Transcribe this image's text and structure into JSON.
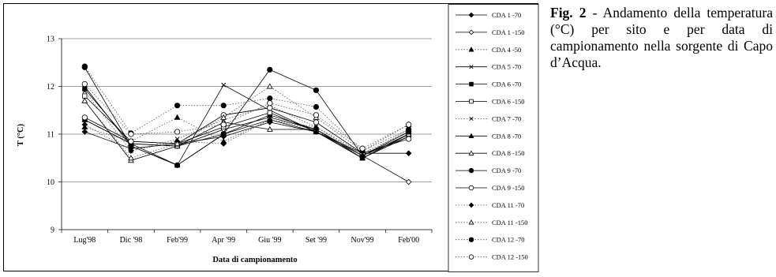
{
  "caption": {
    "label": "Fig. 2",
    "text": " - Andamento della temperatura (°C) per sito e per data di campionamento nella sorgente di Capo d’Acqua."
  },
  "chart_data": {
    "type": "line",
    "title": "",
    "xlabel": "Data di campionamento",
    "ylabel": "T (°C)",
    "ylim": [
      9,
      13
    ],
    "yticks": [
      9,
      10,
      11,
      12,
      13
    ],
    "grid": "horizontal",
    "legend_position": "right",
    "categories": [
      "Lug'98",
      "Dic '98",
      "Feb'99",
      "Apr '99",
      "Giu '99",
      "Set '99",
      "Nov'99",
      "Feb'00"
    ],
    "series": [
      {
        "name": "CDA 1 -70",
        "marker": "diamond-filled",
        "dash": "solid",
        "values": [
          11.05,
          10.7,
          10.8,
          10.95,
          11.25,
          11.05,
          10.6,
          10.6
        ]
      },
      {
        "name": "CDA 1 -150",
        "marker": "diamond-open",
        "dash": "solid",
        "values": [
          11.3,
          10.8,
          10.75,
          11.1,
          11.35,
          11.1,
          10.55,
          10.0
        ]
      },
      {
        "name": "CDA 4 -50",
        "marker": "triangle-filled",
        "dash": "dotted",
        "values": [
          11.15,
          10.85,
          11.35,
          10.85,
          11.3,
          11.15,
          10.55,
          11.05
        ]
      },
      {
        "name": "CDA 5 -70",
        "marker": "x",
        "dash": "solid",
        "values": [
          12.0,
          10.75,
          10.35,
          12.03,
          11.5,
          11.05,
          10.55,
          10.95
        ]
      },
      {
        "name": "CDA 6 -70",
        "marker": "square-filled",
        "dash": "solid",
        "values": [
          11.95,
          10.8,
          10.75,
          11.0,
          11.4,
          11.1,
          10.5,
          11.0
        ]
      },
      {
        "name": "CDA 6 -150",
        "marker": "square-open",
        "dash": "solid",
        "values": [
          11.8,
          10.85,
          10.8,
          11.15,
          11.45,
          11.05,
          10.5,
          10.95
        ]
      },
      {
        "name": "CDA 7 -70",
        "marker": "x",
        "dash": "dotted",
        "values": [
          11.9,
          10.65,
          10.9,
          11.3,
          11.6,
          11.15,
          10.6,
          11.05
        ]
      },
      {
        "name": "CDA 8 -70",
        "marker": "triangle-filled",
        "dash": "solid",
        "values": [
          11.3,
          10.8,
          10.35,
          11.0,
          11.3,
          11.05,
          10.5,
          11.0
        ]
      },
      {
        "name": "CDA 8 -150",
        "marker": "triangle-open",
        "dash": "solid",
        "values": [
          11.7,
          10.45,
          10.75,
          11.25,
          11.1,
          11.1,
          10.55,
          11.0
        ]
      },
      {
        "name": "CDA 9 -70",
        "marker": "circle-filled",
        "dash": "solid",
        "values": [
          12.4,
          10.75,
          10.35,
          11.0,
          12.35,
          11.92,
          10.55,
          11.05
        ]
      },
      {
        "name": "CDA 9 -150",
        "marker": "circle-open",
        "dash": "solid",
        "values": [
          11.35,
          10.85,
          10.8,
          11.4,
          11.55,
          11.25,
          10.6,
          10.9
        ]
      },
      {
        "name": "CDA 11 -70",
        "marker": "diamond-filled",
        "dash": "dotted",
        "values": [
          11.2,
          10.65,
          10.85,
          10.8,
          11.3,
          11.1,
          10.55,
          11.1
        ]
      },
      {
        "name": "CDA 11 -150",
        "marker": "triangle-open",
        "dash": "dotted",
        "values": [
          11.7,
          10.5,
          10.8,
          11.35,
          12.0,
          11.35,
          10.65,
          11.2
        ]
      },
      {
        "name": "CDA 12 -70",
        "marker": "circle-filled",
        "dash": "dotted",
        "values": [
          12.42,
          11.02,
          11.6,
          11.6,
          11.75,
          11.57,
          10.65,
          11.1
        ]
      },
      {
        "name": "CDA 12 -150",
        "marker": "circle-open",
        "dash": "dotted",
        "values": [
          12.05,
          11.0,
          11.05,
          11.2,
          11.65,
          11.4,
          10.7,
          11.2
        ]
      }
    ]
  }
}
